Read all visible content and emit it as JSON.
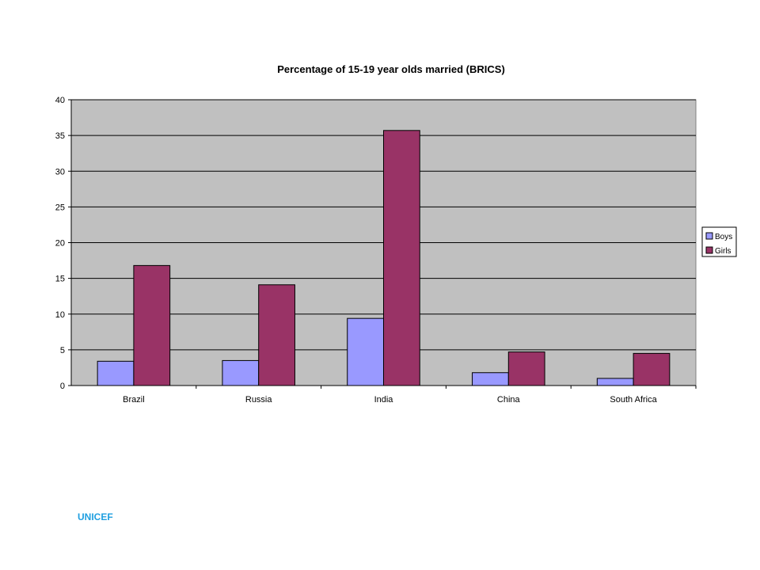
{
  "source": "UNICEF",
  "chart_data": {
    "type": "bar",
    "title": "Percentage of 15-19 year olds married (BRICS)",
    "xlabel": "",
    "ylabel": "",
    "categories": [
      "Brazil",
      "Russia",
      "India",
      "China",
      "South Africa"
    ],
    "series": [
      {
        "name": "Boys",
        "color": "#9999ff",
        "values": [
          3.4,
          3.5,
          9.4,
          1.8,
          1.0
        ]
      },
      {
        "name": "Girls",
        "color": "#993366",
        "values": [
          16.8,
          14.1,
          35.7,
          4.7,
          4.5
        ]
      }
    ],
    "ylim": [
      0,
      40
    ],
    "yticks": [
      0,
      5,
      10,
      15,
      20,
      25,
      30,
      35,
      40
    ],
    "grid": true,
    "plot_background": "#c0c0c0",
    "legend_position": "right"
  }
}
